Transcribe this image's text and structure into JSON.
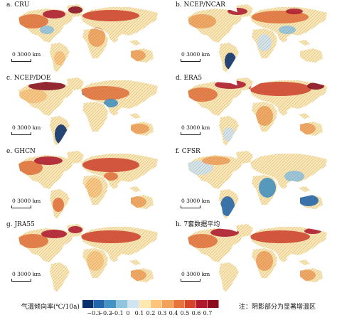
{
  "panels": [
    {
      "label": "a. CRU",
      "scale_label": "0 3000 km"
    },
    {
      "label": "b. NCEP/NCAR",
      "scale_label": "0 3000 km"
    },
    {
      "label": "c. NCEP/DOE",
      "scale_label": "0 3000 km"
    },
    {
      "label": "d. ERA5",
      "scale_label": "0 3000 km"
    },
    {
      "label": "e. GHCN",
      "scale_label": "0 3000 km"
    },
    {
      "label": "f. CFSR",
      "scale_label": "0 3000 km"
    },
    {
      "label": "g. JRA55",
      "scale_label": "0 3000 km"
    },
    {
      "label": "h. 7套数据平均",
      "scale_label": "0 3000 km"
    }
  ],
  "legend": {
    "title": "气温倾向率(℃/10a)",
    "ticks": [
      "−0.3",
      "−0.2",
      "−0.1",
      "0",
      "0.1",
      "0.2",
      "0.3",
      "0.4",
      "0.5",
      "0.6",
      "0.7"
    ],
    "colors": [
      "#08306b",
      "#2166ac",
      "#4393c3",
      "#92c5de",
      "#d1e5f0",
      "#fee8b0",
      "#fdc47a",
      "#f4a259",
      "#e8743b",
      "#d6452b",
      "#b2182b",
      "#8b0d1e"
    ],
    "note": "注：阴影部分为显著增温区"
  }
}
